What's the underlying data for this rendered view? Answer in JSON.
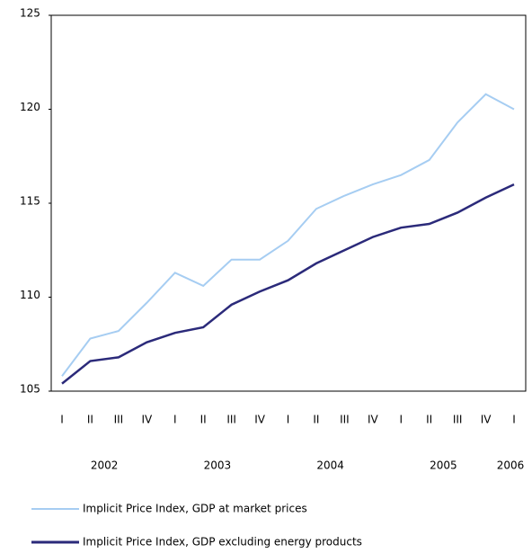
{
  "chart_data": {
    "type": "line",
    "categories": [
      "I",
      "II",
      "III",
      "IV",
      "I",
      "II",
      "III",
      "IV",
      "I",
      "II",
      "III",
      "IV",
      "I",
      "II",
      "III",
      "IV",
      "I"
    ],
    "years": [
      "2002",
      "2003",
      "2004",
      "2005",
      "2006"
    ],
    "series": [
      {
        "name": "Implicit Price Index, GDP at market prices",
        "color": "#a6cdf2",
        "values": [
          105.8,
          107.8,
          108.2,
          109.7,
          111.3,
          110.6,
          112.0,
          112.0,
          113.0,
          114.7,
          115.4,
          116.0,
          116.5,
          117.3,
          119.3,
          120.8,
          120.0
        ]
      },
      {
        "name": "Implicit Price Index, GDP excluding energy products",
        "color": "#2b2a7a",
        "values": [
          105.4,
          106.6,
          106.8,
          107.6,
          108.1,
          108.4,
          109.6,
          110.3,
          110.9,
          111.8,
          112.5,
          113.2,
          113.7,
          113.9,
          114.5,
          115.3,
          116.0
        ]
      }
    ],
    "ylim": [
      105,
      125
    ],
    "yticks": [
      105,
      110,
      115,
      120,
      125
    ],
    "grid": false
  }
}
